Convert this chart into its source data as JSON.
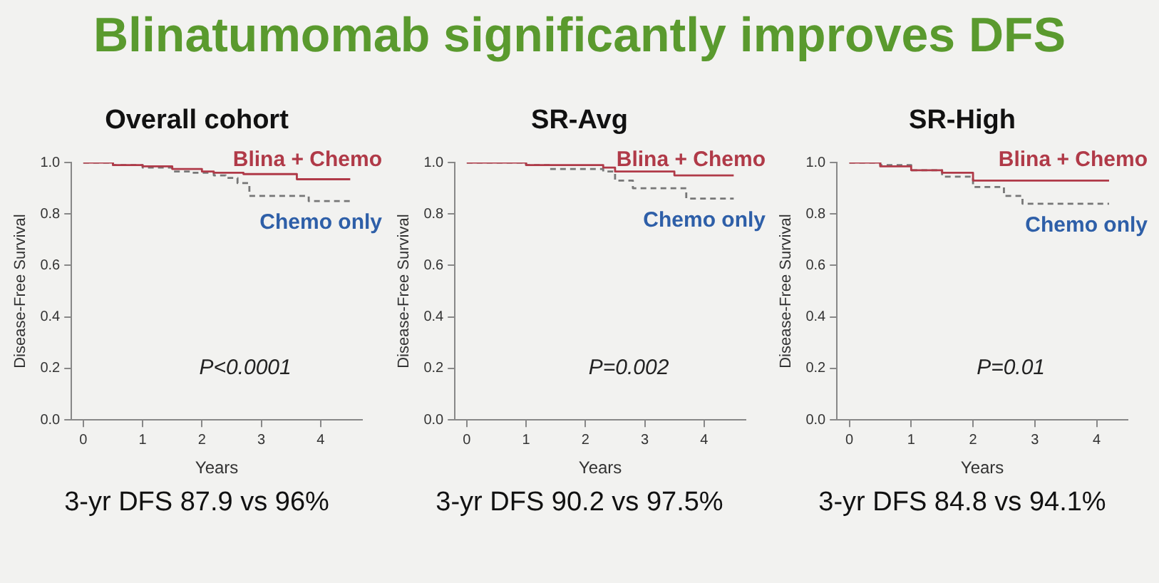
{
  "chart_data": [
    {
      "type": "other",
      "title": "Blinatumomab significantly improves DFS"
    },
    {
      "type": "step",
      "title": "Overall cohort",
      "xlabel": "Years",
      "ylabel": "Disease-Free Survival",
      "xlim": [
        -0.2,
        4.7
      ],
      "xticks": [
        0,
        1,
        2,
        3,
        4
      ],
      "ylim": [
        0,
        1
      ],
      "yticks": [
        {
          "value": 0,
          "label": "0.0"
        },
        {
          "value": 0.2,
          "label": "0.2"
        },
        {
          "value": 0.4,
          "label": "0.4"
        },
        {
          "value": 0.6,
          "label": "0.6"
        },
        {
          "value": 0.8,
          "label": "0.8"
        },
        {
          "value": 1,
          "label": "1.0"
        }
      ],
      "grid": false,
      "legend": false,
      "annotations": [
        "P<0.0001",
        "3-yr DFS 87.9 vs 96%"
      ],
      "series": [
        {
          "name": "Blina + Chemo",
          "color": "#b03a48",
          "line_style": "solid",
          "x": [
            0,
            0.5,
            1,
            1.5,
            2,
            2.2,
            2.7,
            3.6,
            4.5
          ],
          "values": [
            1,
            0.99,
            0.985,
            0.975,
            0.965,
            0.96,
            0.955,
            0.935,
            0.935
          ]
        },
        {
          "name": "Chemo only",
          "color": "#777777",
          "line_style": "dashed",
          "x": [
            0,
            0.5,
            1,
            1.5,
            1.8,
            2.2,
            2.4,
            2.6,
            2.8,
            3.8,
            4.5
          ],
          "values": [
            1,
            0.99,
            0.98,
            0.965,
            0.96,
            0.95,
            0.94,
            0.92,
            0.87,
            0.85,
            0.85
          ]
        }
      ]
    },
    {
      "type": "step",
      "title": "SR-Avg",
      "xlabel": "Years",
      "ylabel": "Disease-Free Survival",
      "xlim": [
        -0.2,
        4.7
      ],
      "xticks": [
        0,
        1,
        2,
        3,
        4
      ],
      "ylim": [
        0,
        1
      ],
      "yticks": [
        {
          "value": 0,
          "label": "0.0"
        },
        {
          "value": 0.2,
          "label": "0.2"
        },
        {
          "value": 0.4,
          "label": "0.4"
        },
        {
          "value": 0.6,
          "label": "0.6"
        },
        {
          "value": 0.8,
          "label": "0.8"
        },
        {
          "value": 1,
          "label": "1.0"
        }
      ],
      "grid": false,
      "legend": false,
      "annotations": [
        "P=0.002",
        "3-yr DFS 90.2 vs 97.5%"
      ],
      "series": [
        {
          "name": "Blina + Chemo",
          "color": "#b03a48",
          "line_style": "solid",
          "x": [
            0,
            1,
            2.3,
            2.5,
            3.5,
            4.5
          ],
          "values": [
            1,
            0.99,
            0.98,
            0.965,
            0.95,
            0.95
          ]
        },
        {
          "name": "Chemo only",
          "color": "#777777",
          "line_style": "dashed",
          "x": [
            0,
            1,
            1.4,
            2.3,
            2.5,
            2.8,
            3.7,
            4.5
          ],
          "values": [
            1,
            0.99,
            0.975,
            0.965,
            0.93,
            0.9,
            0.86,
            0.86
          ]
        }
      ]
    },
    {
      "type": "step",
      "title": "SR-High",
      "xlabel": "Years",
      "ylabel": "Disease-Free Survival",
      "xlim": [
        -0.2,
        4.5
      ],
      "xticks": [
        0,
        1,
        2,
        3,
        4
      ],
      "ylim": [
        0,
        1
      ],
      "yticks": [
        {
          "value": 0,
          "label": "0.0"
        },
        {
          "value": 0.2,
          "label": "0.2"
        },
        {
          "value": 0.4,
          "label": "0.4"
        },
        {
          "value": 0.6,
          "label": "0.6"
        },
        {
          "value": 0.8,
          "label": "0.8"
        },
        {
          "value": 1,
          "label": "1.0"
        }
      ],
      "grid": false,
      "legend": false,
      "annotations": [
        "P=0.01",
        "3-yr DFS 84.8 vs 94.1%"
      ],
      "series": [
        {
          "name": "Blina + Chemo",
          "color": "#b03a48",
          "line_style": "solid",
          "x": [
            0,
            0.5,
            1,
            1.5,
            2,
            4.2
          ],
          "values": [
            1,
            0.985,
            0.97,
            0.96,
            0.93,
            0.93
          ]
        },
        {
          "name": "Chemo only",
          "color": "#777777",
          "line_style": "dashed",
          "x": [
            0,
            0.5,
            1,
            1.5,
            2,
            2.5,
            2.8,
            4.2
          ],
          "values": [
            1,
            0.99,
            0.97,
            0.945,
            0.905,
            0.87,
            0.84,
            0.84
          ]
        }
      ]
    }
  ]
}
